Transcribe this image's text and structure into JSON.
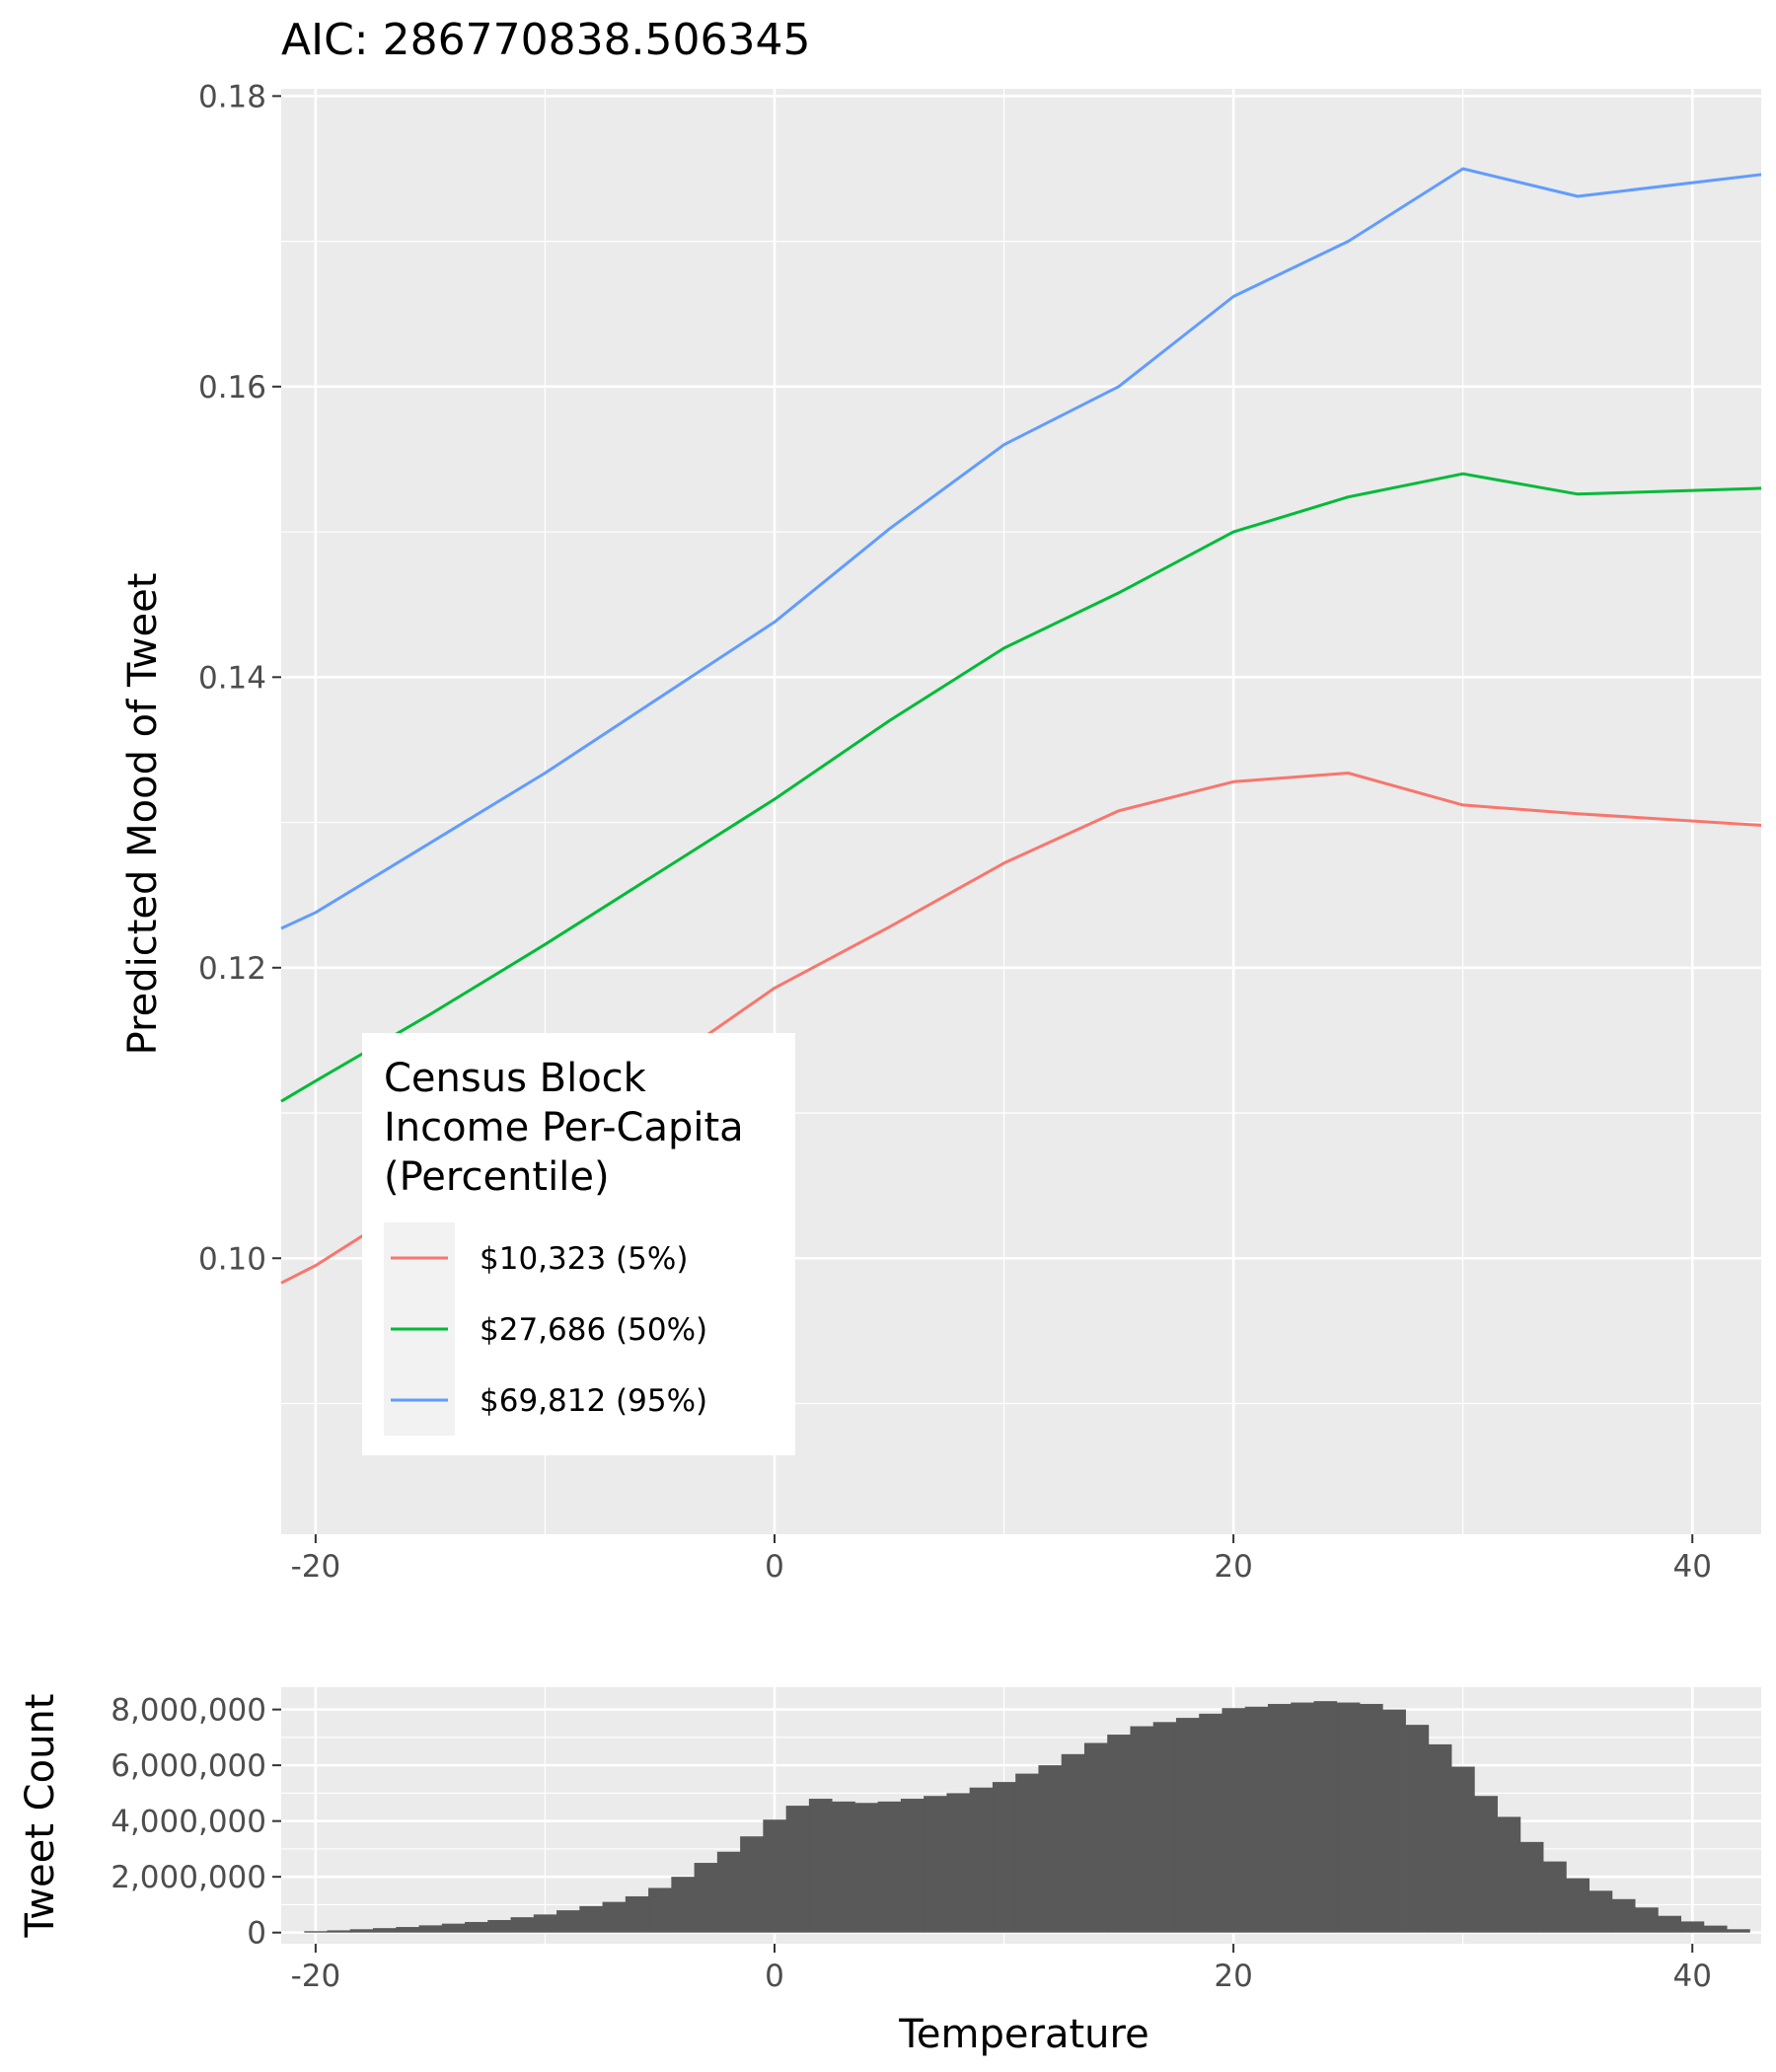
{
  "chart_data": [
    {
      "type": "line",
      "title": "AIC: 286770838.506345",
      "xlabel": "",
      "ylabel": "Predicted Mood of Tweet",
      "xlim": [
        -21.5,
        43
      ],
      "ylim": [
        0.081,
        0.1805
      ],
      "x_ticks": [
        -20,
        0,
        20,
        40
      ],
      "x_tick_labels": [
        "-20",
        "0",
        "20",
        "40"
      ],
      "y_ticks": [
        0.1,
        0.12,
        0.14,
        0.16,
        0.18
      ],
      "y_tick_labels": [
        "0.10",
        "0.12",
        "0.14",
        "0.16",
        "0.18"
      ],
      "grid": true,
      "legend": {
        "title": [
          "Census Block",
          "Income Per-Capita",
          "(Percentile)"
        ],
        "placement": "inside-bottom-left"
      },
      "series": [
        {
          "name": "$10,323 (5%)",
          "color": "#F8766D",
          "x": [
            -21.5,
            -20,
            -15,
            -10,
            -5,
            0,
            5,
            10,
            15,
            20,
            25,
            30,
            35,
            43
          ],
          "y": [
            0.0983,
            0.0995,
            0.1045,
            0.1085,
            0.1131,
            0.1186,
            0.1228,
            0.1272,
            0.1308,
            0.1328,
            0.1334,
            0.1312,
            0.1306,
            0.1298
          ]
        },
        {
          "name": "$27,686 (50%)",
          "color": "#00BA38",
          "x": [
            -21.5,
            -20,
            -15,
            -10,
            -5,
            0,
            5,
            10,
            15,
            20,
            25,
            30,
            35,
            43
          ],
          "y": [
            0.1108,
            0.1122,
            0.1168,
            0.1216,
            0.1266,
            0.1316,
            0.137,
            0.142,
            0.1458,
            0.15,
            0.1524,
            0.154,
            0.1526,
            0.153
          ]
        },
        {
          "name": "$69,812 (95%)",
          "color": "#619CFF",
          "x": [
            -21.5,
            -20,
            -15,
            -10,
            -5,
            0,
            5,
            10,
            15,
            20,
            25,
            30,
            35,
            43
          ],
          "y": [
            0.1227,
            0.1238,
            0.1286,
            0.1334,
            0.1386,
            0.1438,
            0.1502,
            0.156,
            0.16,
            0.1662,
            0.17,
            0.175,
            0.1731,
            0.1746
          ]
        }
      ]
    },
    {
      "type": "bar",
      "title": "",
      "xlabel": "Temperature",
      "ylabel": "Tweet Count",
      "xlim": [
        -21.5,
        43
      ],
      "ylim": [
        -400000,
        8800000
      ],
      "x_ticks": [
        -20,
        0,
        20,
        40
      ],
      "x_tick_labels": [
        "-20",
        "0",
        "20",
        "40"
      ],
      "y_ticks": [
        0,
        2000000,
        4000000,
        6000000,
        8000000
      ],
      "y_tick_labels": [
        "0",
        "2,000,000",
        "4,000,000",
        "6,000,000",
        "8,000,000"
      ],
      "grid": true,
      "bin_width": 1,
      "bar_color": "#595959",
      "x": [
        -20,
        -19,
        -18,
        -17,
        -16,
        -15,
        -14,
        -13,
        -12,
        -11,
        -10,
        -9,
        -8,
        -7,
        -6,
        -5,
        -4,
        -3,
        -2,
        -1,
        0,
        1,
        2,
        3,
        4,
        5,
        6,
        7,
        8,
        9,
        10,
        11,
        12,
        13,
        14,
        15,
        16,
        17,
        18,
        19,
        20,
        21,
        22,
        23,
        24,
        25,
        26,
        27,
        28,
        29,
        30,
        31,
        32,
        33,
        34,
        35,
        36,
        37,
        38,
        39,
        40,
        41,
        42
      ],
      "values": [
        50000,
        80000,
        120000,
        160000,
        200000,
        260000,
        320000,
        380000,
        450000,
        550000,
        650000,
        800000,
        950000,
        1100000,
        1300000,
        1600000,
        2000000,
        2500000,
        2900000,
        3450000,
        4050000,
        4550000,
        4800000,
        4700000,
        4650000,
        4700000,
        4800000,
        4900000,
        5000000,
        5200000,
        5400000,
        5700000,
        6000000,
        6400000,
        6800000,
        7100000,
        7400000,
        7550000,
        7700000,
        7850000,
        8050000,
        8100000,
        8200000,
        8250000,
        8300000,
        8250000,
        8200000,
        8000000,
        7450000,
        6750000,
        5950000,
        4900000,
        4150000,
        3250000,
        2550000,
        1950000,
        1500000,
        1200000,
        900000,
        600000,
        400000,
        250000,
        120000
      ]
    }
  ]
}
